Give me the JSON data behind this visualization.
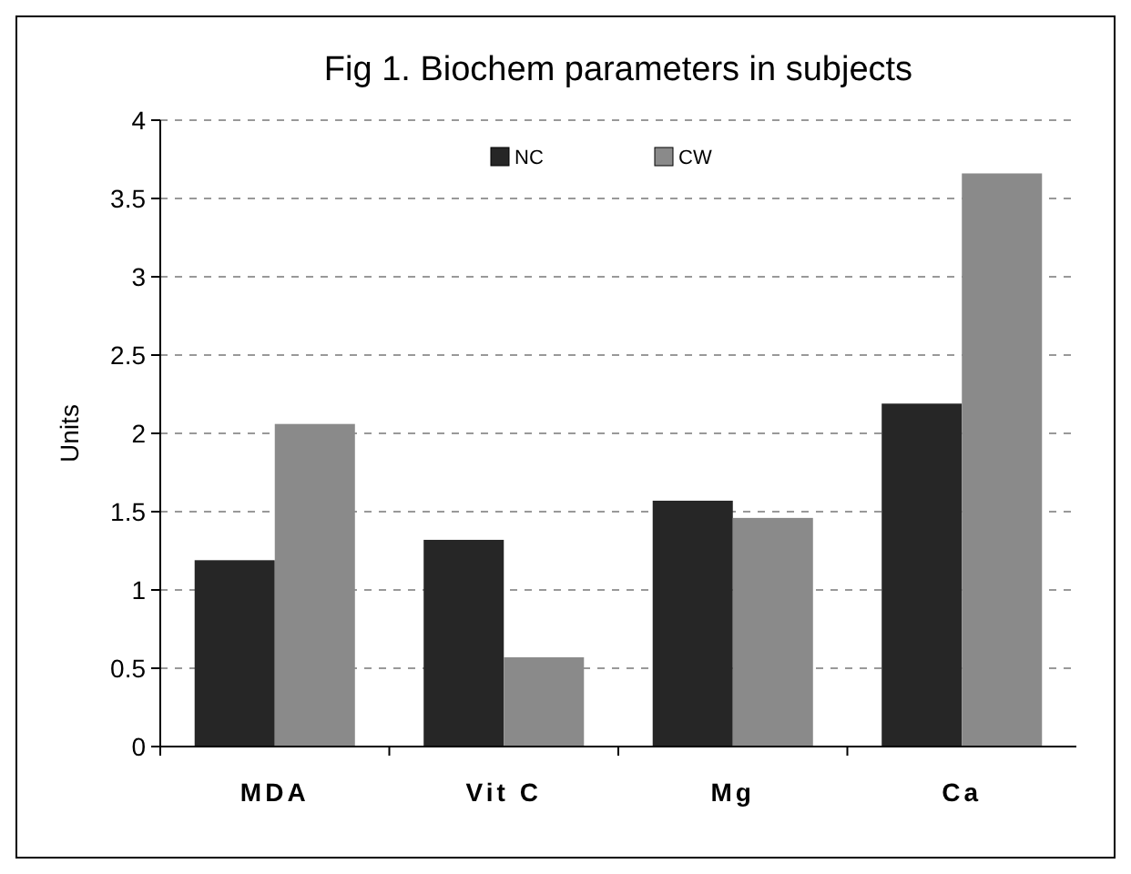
{
  "chart_data": {
    "type": "bar",
    "title": "Fig 1. Biochem parameters in subjects",
    "ylabel": "Units",
    "categories": [
      "MDA",
      "Vit C",
      "Mg",
      "Ca"
    ],
    "series": [
      {
        "name": "NC",
        "color": "#262626",
        "values": [
          1.19,
          1.32,
          1.57,
          2.19
        ]
      },
      {
        "name": "CW",
        "color": "#8a8a8a",
        "values": [
          2.06,
          0.57,
          1.46,
          3.66
        ]
      }
    ],
    "ylim": [
      0,
      4
    ],
    "yticks": [
      0,
      0.5,
      1,
      1.5,
      2,
      2.5,
      3,
      3.5,
      4
    ],
    "grid": "y",
    "legend": "top"
  }
}
